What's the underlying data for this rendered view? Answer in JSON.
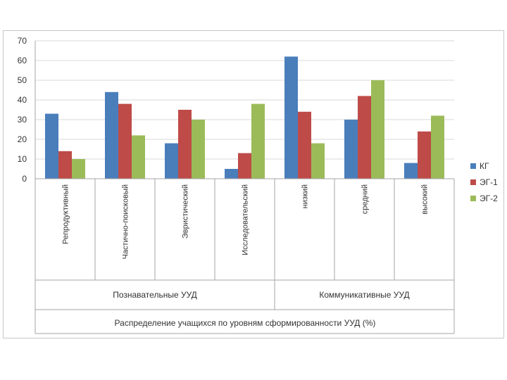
{
  "chart_data": {
    "type": "bar",
    "title": "Распределение учащихся по уровням сформированности УУД (%)",
    "categories": [
      "Репродуктивный",
      "Частично-поисковый",
      "Эвристический",
      "Исследовательский",
      "низкий",
      "средний",
      "высокий"
    ],
    "groups": [
      {
        "label": "Познавательные УУД",
        "count": 4
      },
      {
        "label": "Коммуникативные УУД",
        "count": 3
      }
    ],
    "series": [
      {
        "name": "КГ",
        "color": "#4a7ebb",
        "values": [
          33,
          44,
          18,
          5,
          62,
          30,
          8
        ]
      },
      {
        "name": "ЭГ-1",
        "color": "#be4b48",
        "values": [
          14,
          38,
          35,
          13,
          34,
          42,
          24
        ]
      },
      {
        "name": "ЭГ-2",
        "color": "#9bbb59",
        "values": [
          10,
          22,
          30,
          38,
          18,
          50,
          32
        ]
      }
    ],
    "ylim": [
      0,
      70
    ],
    "yticks": [
      0,
      10,
      20,
      30,
      40,
      50,
      60,
      70
    ],
    "grid": true,
    "legend": "right"
  }
}
